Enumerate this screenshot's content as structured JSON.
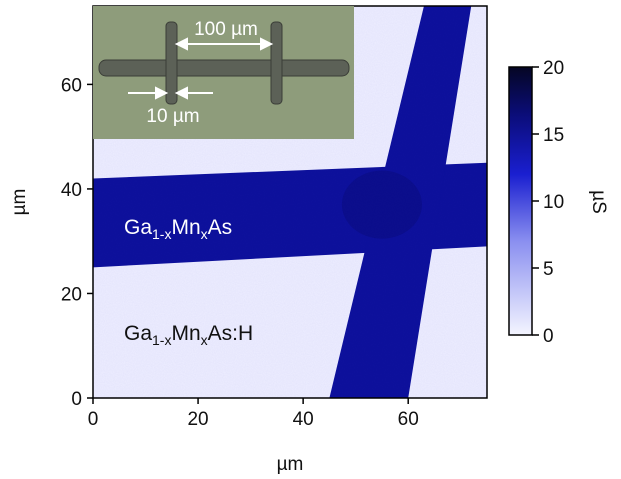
{
  "chart_data": {
    "type": "heatmap",
    "description_kind": "scanning conductance map",
    "xlabel": "µm",
    "ylabel": "µm",
    "xlim": [
      0,
      75
    ],
    "ylim": [
      0,
      75
    ],
    "x_ticks": [
      "0",
      "20",
      "40",
      "60"
    ],
    "x_tick_values": [
      0,
      20,
      40,
      60
    ],
    "y_ticks": [
      "0",
      "20",
      "40",
      "60"
    ],
    "y_tick_values": [
      0,
      20,
      40,
      60
    ],
    "colorbar": {
      "label": "µS",
      "range": [
        0,
        20
      ],
      "ticks": [
        "0",
        "5",
        "10",
        "15",
        "20"
      ],
      "tick_values": [
        0,
        5,
        10,
        15,
        20
      ],
      "low_color": "#f4f5ff",
      "mid_color": "#1a1fd0",
      "high_color": "#050624"
    },
    "colors": {
      "background_region": "#eeeeff",
      "conductive_region": "#0c0f9a",
      "conductive_core": "#08097a"
    },
    "regions": {
      "horizontal_bar": {
        "left_y_range": [
          25,
          42
        ],
        "right_y_range": [
          29,
          45
        ]
      },
      "vertical_bar": {
        "top_x_range": [
          63,
          72
        ],
        "bottom_x_range": [
          45,
          60
        ]
      }
    },
    "labels": {
      "conductive": {
        "base": "Ga",
        "sub1": "1-x",
        "mid": "Mn",
        "sub2": "x",
        "end": "As"
      },
      "hydrogenated": {
        "base": "Ga",
        "sub1": "1-x",
        "mid": "Mn",
        "sub2": "x",
        "end": "As:H"
      }
    },
    "inset": {
      "type": "optical micrograph",
      "dimension_top": "100 µm",
      "dimension_bottom": "10 µm",
      "background_color": "#8e9c7b"
    }
  }
}
